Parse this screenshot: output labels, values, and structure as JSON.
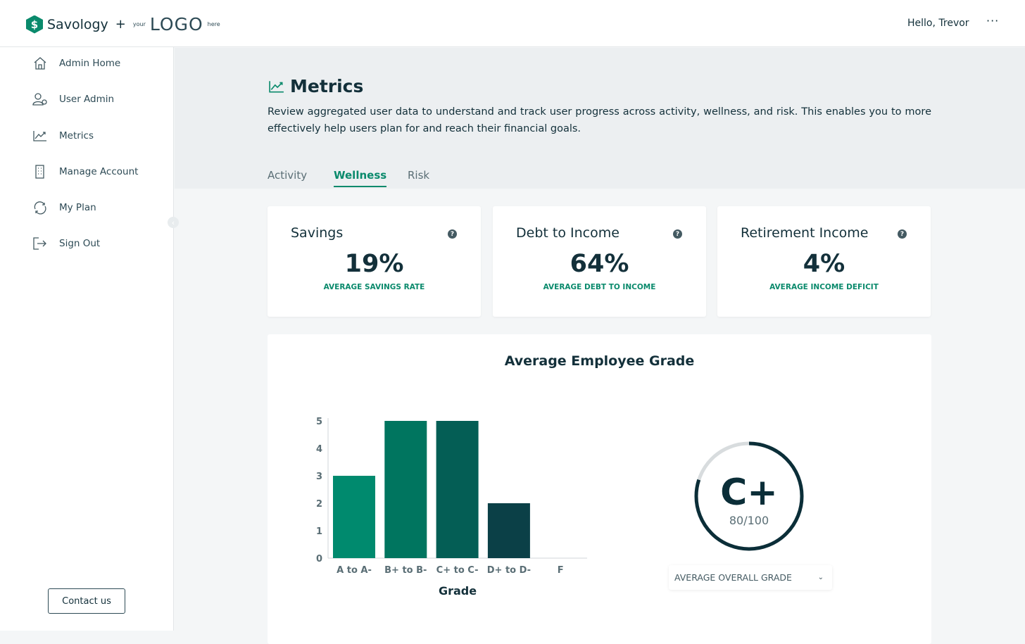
{
  "header": {
    "brand": "Savology",
    "plus": "+",
    "logo_your": "your",
    "logo_text": "LOGO",
    "logo_here": "here",
    "greeting": "Hello, Trevor",
    "more_label": "···"
  },
  "sidebar": {
    "items": [
      {
        "label": "Admin Home",
        "icon": "home-icon"
      },
      {
        "label": "User Admin",
        "icon": "user-gear-icon"
      },
      {
        "label": "Metrics",
        "icon": "chart-trend-icon"
      },
      {
        "label": "Manage Account",
        "icon": "building-icon"
      },
      {
        "label": "My Plan",
        "icon": "plan-cycle-icon"
      },
      {
        "label": "Sign Out",
        "icon": "sign-out-icon"
      }
    ],
    "contact": "Contact us"
  },
  "page": {
    "title": "Metrics",
    "description": "Review aggregated user data to understand and track user progress across activity, wellness, and risk. This enables you to more effectively help users plan for and reach their financial goals.",
    "tabs": [
      {
        "label": "Activity"
      },
      {
        "label": "Wellness",
        "active": true
      },
      {
        "label": "Risk"
      }
    ]
  },
  "cards": [
    {
      "title": "Savings",
      "value": "19%",
      "subtitle": "AVERAGE SAVINGS RATE"
    },
    {
      "title": "Debt to Income",
      "value": "64%",
      "subtitle": "AVERAGE DEBT TO INCOME"
    },
    {
      "title": "Retirement Income",
      "value": "4%",
      "subtitle": "AVERAGE INCOME DEFICIT"
    }
  ],
  "grade": {
    "letter": "C+",
    "score": "80/100",
    "fraction": 0.8,
    "dropdown": "AVERAGE OVERALL GRADE"
  },
  "colors": {
    "accent": "#0a8a6c",
    "dark": "#13303a"
  },
  "chart_data": {
    "type": "bar",
    "title": "Average Employee Grade",
    "xlabel": "Grade",
    "ylabel": "",
    "categories": [
      "A to A-",
      "B+ to B-",
      "C+ to C-",
      "D+ to D-",
      "F"
    ],
    "values": [
      3,
      5,
      5,
      2,
      0
    ],
    "colors": [
      "#008a6e",
      "#00755f",
      "#045e55",
      "#0b4047",
      "#0b4047"
    ],
    "ylim": [
      0,
      5
    ],
    "yticks": [
      "0",
      "1",
      "2",
      "3",
      "4",
      "5"
    ]
  }
}
